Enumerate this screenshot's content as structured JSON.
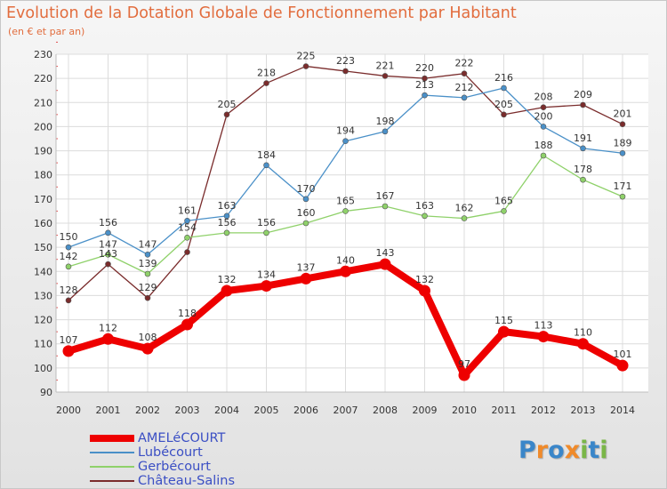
{
  "title": "Evolution de la Dotation Globale de Fonctionnement par Habitant",
  "subtitle": "(en € et par an)",
  "logo": {
    "letters": [
      "P",
      "r",
      "o",
      "x",
      "i",
      "t",
      "i"
    ],
    "colors": [
      "#3a86c9",
      "#f08a2a",
      "#3a86c9",
      "#f08a2a",
      "#7ab648",
      "#3a86c9",
      "#7ab648"
    ]
  },
  "chart_data": {
    "type": "line",
    "title": "Evolution de la Dotation Globale de Fonctionnement par Habitant",
    "subtitle": "(en € et par an)",
    "xlabel": "",
    "ylabel": "",
    "x": [
      "2000",
      "2001",
      "2002",
      "2003",
      "2004",
      "2005",
      "2006",
      "2007",
      "2008",
      "2009",
      "2010",
      "2011",
      "2012",
      "2013",
      "2014"
    ],
    "ylim": [
      90,
      230
    ],
    "yticks": [
      "90",
      "100",
      "110",
      "120",
      "130",
      "140",
      "150",
      "160",
      "170",
      "180",
      "190",
      "200",
      "210",
      "220",
      "230"
    ],
    "grid": true,
    "legend": "bottom-left",
    "series": [
      {
        "name": "Château-Salins",
        "color": "#7a2c2c",
        "width": 1.3,
        "values": [
          128,
          143,
          129,
          148,
          205,
          218,
          225,
          223,
          221,
          220,
          222,
          205,
          208,
          209,
          201
        ],
        "labels": [
          "128",
          "143",
          "129",
          "",
          "205",
          "218",
          "225",
          "223",
          "221",
          "220",
          "222",
          "205",
          "208",
          "209",
          "201"
        ]
      },
      {
        "name": "Lubécourt",
        "color": "#4a90c8",
        "width": 1.3,
        "values": [
          150,
          156,
          147,
          161,
          163,
          184,
          170,
          194,
          198,
          213,
          212,
          216,
          200,
          191,
          189
        ],
        "labels": [
          "150",
          "156",
          "147",
          "161",
          "163",
          "184",
          "170",
          "194",
          "198",
          "213",
          "212",
          "216",
          "200",
          "191",
          "189"
        ]
      },
      {
        "name": "Gerbécourt",
        "color": "#8fd16a",
        "width": 1.3,
        "values": [
          142,
          147,
          139,
          154,
          156,
          156,
          160,
          165,
          167,
          163,
          162,
          165,
          188,
          178,
          171
        ],
        "labels": [
          "142",
          "147",
          "139",
          "154",
          "156",
          "156",
          "160",
          "165",
          "167",
          "163",
          "162",
          "165",
          "188",
          "178",
          "171"
        ]
      },
      {
        "name": "AMELéCOURT",
        "color": "#ee0000",
        "width": 8,
        "values": [
          107,
          112,
          108,
          118,
          132,
          134,
          137,
          140,
          143,
          132,
          97,
          115,
          113,
          110,
          101
        ],
        "labels": [
          "107",
          "112",
          "108",
          "118",
          "132",
          "134",
          "137",
          "140",
          "143",
          "132",
          "97",
          "115",
          "113",
          "110",
          "101"
        ]
      }
    ],
    "legend_order": [
      "AMELéCOURT",
      "Lubécourt",
      "Gerbécourt",
      "Château-Salins"
    ]
  }
}
